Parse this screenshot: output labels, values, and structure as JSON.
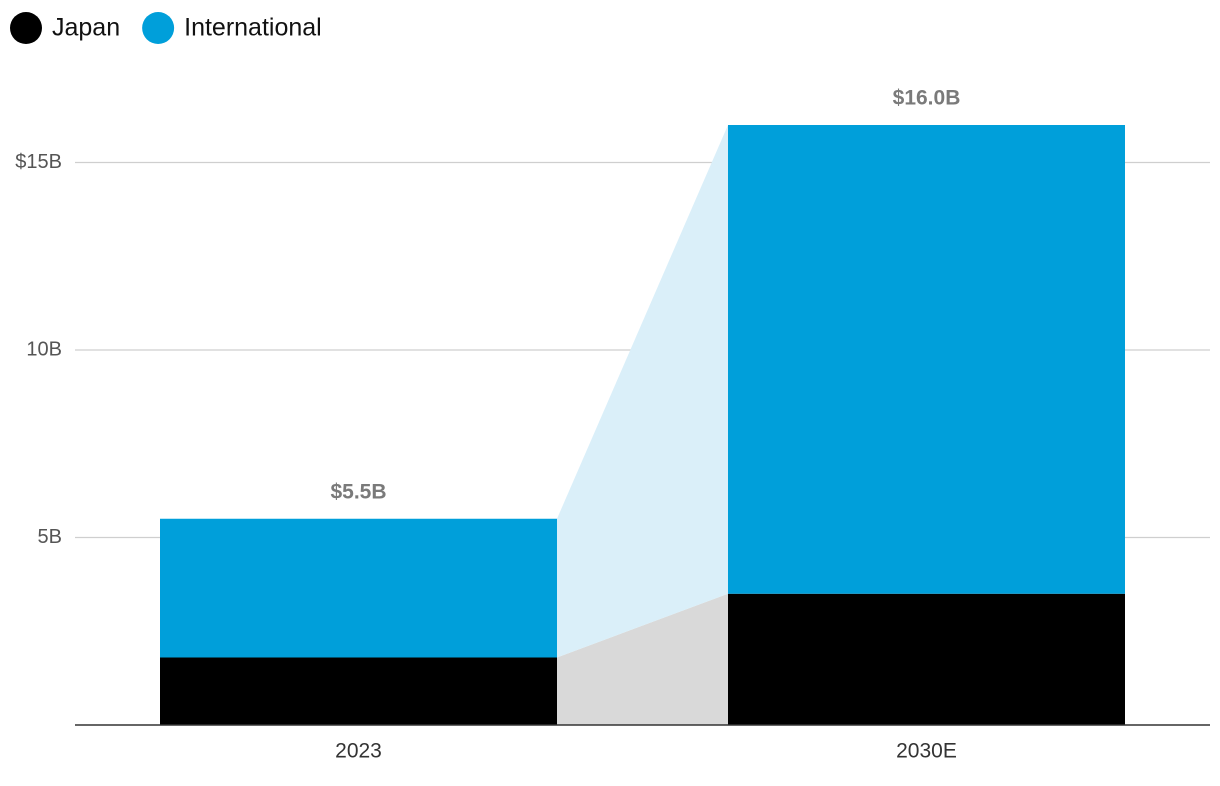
{
  "chart_data": {
    "type": "stacked-bar",
    "categories": [
      "2023",
      "2030E"
    ],
    "series": [
      {
        "name": "Japan",
        "color": "#000000",
        "values": [
          1.8,
          3.5
        ]
      },
      {
        "name": "International",
        "color": "#009fda",
        "values": [
          3.7,
          12.5
        ]
      }
    ],
    "totals": {
      "values": [
        5.5,
        16.0
      ],
      "value_labels": [
        "$5.5B",
        "$16.0B"
      ]
    },
    "ylim": [
      0,
      17
    ],
    "yticks": [
      {
        "value": 5,
        "label": "5B"
      },
      {
        "value": 10,
        "label": "10B"
      },
      {
        "value": 15,
        "label": "$15B"
      }
    ],
    "grid": true,
    "legend": "top-left"
  }
}
